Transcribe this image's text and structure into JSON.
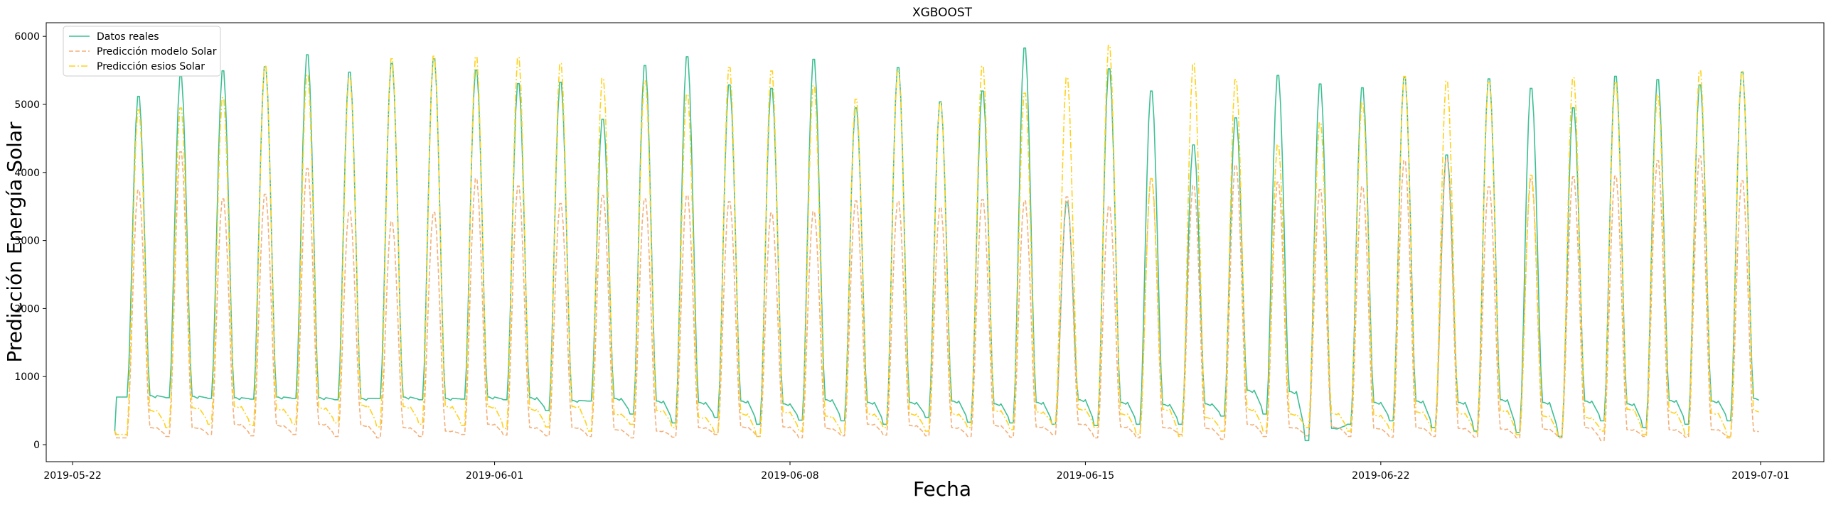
{
  "chart_data": {
    "type": "line",
    "title": "XGBOOST",
    "xlabel": "Fecha",
    "ylabel": "Predicción Energía Solar",
    "xlim": [
      "2019-05-21T09:00",
      "2019-07-02T12:00"
    ],
    "ylim": [
      -250,
      6200
    ],
    "x_ticks": [
      "2019-05-22",
      "2019-06-01",
      "2019-06-08",
      "2019-06-15",
      "2019-06-22",
      "2019-07-01"
    ],
    "y_ticks": [
      0,
      1000,
      2000,
      3000,
      4000,
      5000,
      6000
    ],
    "x_range": [
      "2019-05-23T00:00",
      "2019-06-30T23:00"
    ],
    "legend_position": "top-left",
    "series": [
      {
        "name": "Datos reales",
        "color": "#3dbf94",
        "style": "solid",
        "night": [
          720,
          710,
          690,
          700,
          690,
          680,
          700,
          680,
          700,
          690,
          650,
          680,
          640,
          620,
          640,
          600,
          660,
          620,
          620,
          640,
          600,
          620,
          660,
          620,
          590,
          600,
          800,
          780,
          240,
          620,
          640,
          620,
          660,
          620,
          640,
          600,
          650,
          640,
          680
        ],
        "night_min": [
          700,
          690,
          680,
          670,
          680,
          660,
          680,
          660,
          670,
          660,
          500,
          640,
          450,
          320,
          400,
          300,
          360,
          350,
          300,
          400,
          330,
          320,
          300,
          280,
          300,
          300,
          420,
          450,
          60,
          300,
          350,
          250,
          200,
          180,
          120,
          350,
          250,
          300,
          350,
          450
        ],
        "peaks": [
          5170,
          5470,
          5550,
          5610,
          5790,
          5530,
          5660,
          5730,
          5560,
          5360,
          5380,
          4830,
          5630,
          5760,
          5340,
          5290,
          5720,
          5000,
          5600,
          5090,
          5250,
          5890,
          3600,
          5580,
          5250,
          4450,
          4850,
          5480,
          5360,
          5300,
          5450,
          4300,
          5430,
          5290,
          5000,
          5470,
          5420,
          5340,
          5530,
          5440
        ]
      },
      {
        "name": "Predicción modelo Solar",
        "color": "#f2b07a",
        "style": "dashed",
        "night": [
          250,
          250,
          300,
          280,
          300,
          280,
          250,
          200,
          300,
          250,
          250,
          220,
          200,
          250,
          260,
          260,
          240,
          300,
          280,
          250,
          280,
          260,
          300,
          260,
          250,
          240,
          300,
          250,
          260,
          240,
          250,
          240,
          230,
          230,
          250,
          220,
          220,
          220,
          200
        ],
        "night_min": [
          100,
          120,
          150,
          130,
          150,
          120,
          100,
          120,
          150,
          140,
          130,
          120,
          100,
          110,
          150,
          120,
          100,
          130,
          140,
          130,
          120,
          110,
          150,
          100,
          100,
          150,
          80,
          120,
          130,
          120,
          110,
          120,
          110,
          100,
          100,
          60,
          120,
          110,
          100,
          120
        ],
        "peaks": [
          3780,
          4350,
          3650,
          3720,
          4100,
          3470,
          3310,
          3450,
          3950,
          3840,
          3580,
          3700,
          3650,
          3700,
          3610,
          3440,
          3460,
          3620,
          3610,
          3520,
          3640,
          3620,
          3680,
          3540,
          3950,
          3850,
          4150,
          3900,
          3790,
          3830,
          4220,
          4250,
          3830,
          3940,
          3980,
          3990,
          4220,
          4290,
          3920,
          4200
        ]
      },
      {
        "name": "Predicción esios Solar",
        "color": "#ffd21c",
        "style": "dashdot",
        "night": [
          500,
          540,
          560,
          520,
          540,
          580,
          560,
          560,
          560,
          520,
          560,
          450,
          500,
          400,
          450,
          480,
          420,
          450,
          450,
          450,
          500,
          480,
          520,
          450,
          520,
          400,
          520,
          450,
          460,
          430,
          480,
          460,
          500,
          420,
          400,
          520,
          480,
          460,
          500
        ],
        "night_min": [
          150,
          250,
          300,
          280,
          300,
          320,
          260,
          300,
          280,
          240,
          260,
          200,
          300,
          250,
          180,
          120,
          200,
          180,
          250,
          200,
          250,
          220,
          300,
          250,
          150,
          120,
          200,
          200,
          250,
          200,
          220,
          200,
          180,
          150,
          120,
          200,
          150,
          150,
          120,
          300
        ],
        "peaks": [
          4970,
          5000,
          5150,
          5620,
          5490,
          5460,
          5730,
          5770,
          5760,
          5750,
          5660,
          5440,
          5400,
          5200,
          5600,
          5550,
          5330,
          5130,
          5540,
          5080,
          5620,
          5220,
          5450,
          5930,
          3950,
          5660,
          5420,
          4450,
          4780,
          5080,
          5470,
          5400,
          5380,
          4000,
          5450,
          5370,
          5190,
          5550,
          5540,
          5350
        ]
      }
    ]
  }
}
